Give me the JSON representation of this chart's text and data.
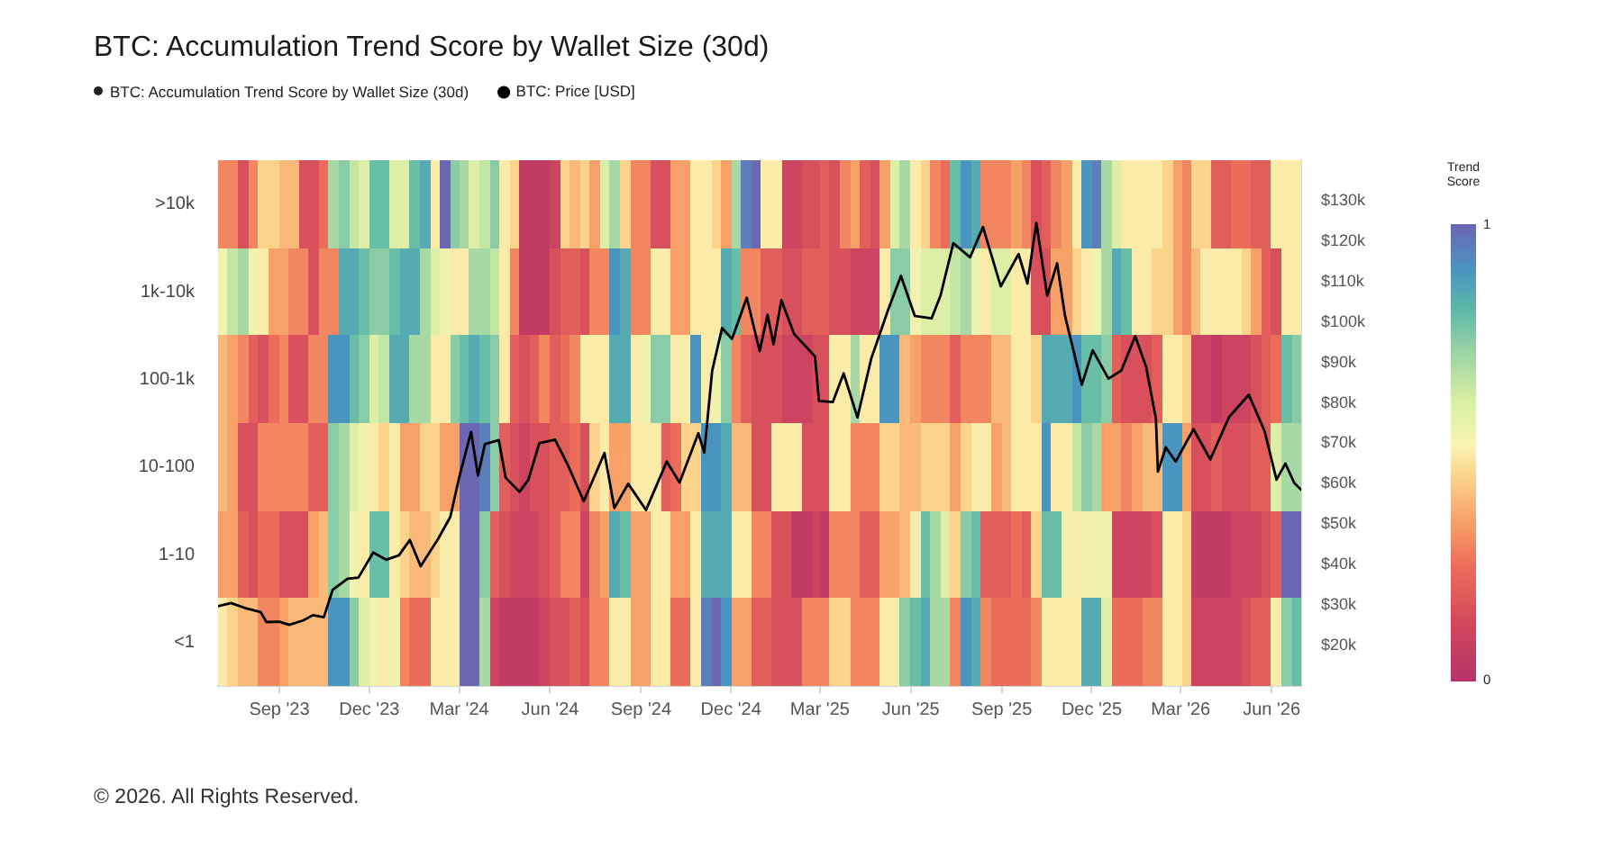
{
  "chart_data": {
    "type": "heatmap",
    "title": "BTC: Accumulation Trend Score by Wallet Size (30d)",
    "x": [
      "2023-07-06",
      "2023-07-16",
      "2023-07-26",
      "2023-08-06",
      "2023-08-16",
      "2023-08-26",
      "2023-09-06",
      "2023-09-16",
      "2023-09-26",
      "2023-10-06",
      "2023-10-16",
      "2023-10-26",
      "2023-11-06",
      "2023-11-16",
      "2023-11-26",
      "2023-12-06",
      "2023-12-16",
      "2023-12-26",
      "2024-01-06",
      "2024-01-16",
      "2024-01-26",
      "2024-02-06",
      "2024-02-16",
      "2024-02-26",
      "2024-03-06",
      "2024-03-16",
      "2024-03-26",
      "2024-04-06",
      "2024-04-16",
      "2024-04-26",
      "2024-05-06",
      "2024-05-16",
      "2024-05-26",
      "2024-06-06",
      "2024-06-16",
      "2024-06-26",
      "2024-07-06",
      "2024-07-16",
      "2024-07-26",
      "2024-08-06",
      "2024-08-16",
      "2024-08-26",
      "2024-09-06",
      "2024-09-16",
      "2024-09-26",
      "2024-10-06",
      "2024-10-16",
      "2024-10-26",
      "2024-11-06",
      "2024-11-16",
      "2024-11-26",
      "2024-12-06",
      "2024-12-16",
      "2024-12-26",
      "2025-01-06",
      "2025-01-16",
      "2025-01-26",
      "2025-02-06",
      "2025-02-16",
      "2025-02-26",
      "2025-03-06",
      "2025-03-16",
      "2025-03-26",
      "2025-04-06",
      "2025-04-16",
      "2025-04-26",
      "2025-05-06",
      "2025-05-16",
      "2025-05-26",
      "2025-06-06",
      "2025-06-16",
      "2025-06-26",
      "2025-07-06",
      "2025-07-16",
      "2025-07-26",
      "2025-08-06",
      "2025-08-16",
      "2025-08-26",
      "2025-09-06",
      "2025-09-16",
      "2025-09-26",
      "2025-10-06",
      "2025-10-16",
      "2025-10-26",
      "2025-11-06",
      "2025-11-16",
      "2025-11-26",
      "2025-12-06",
      "2025-12-16",
      "2025-12-26",
      "2026-01-06",
      "2026-01-16",
      "2026-01-26",
      "2026-02-06",
      "2026-02-16",
      "2026-02-26",
      "2026-03-06",
      "2026-03-16",
      "2026-03-26",
      "2026-04-06",
      "2026-04-16",
      "2026-04-26",
      "2026-05-06",
      "2026-05-16",
      "2026-05-26",
      "2026-06-06",
      "2026-06-16",
      "2026-06-26"
    ],
    "xlim": [
      "2023-07-01",
      "2026-07-01"
    ],
    "xticks": [
      {
        "value": "2023-09-01",
        "label": "Sep '23"
      },
      {
        "value": "2023-12-01",
        "label": "Dec '23"
      },
      {
        "value": "2024-03-01",
        "label": "Mar '24"
      },
      {
        "value": "2024-06-01",
        "label": "Jun '24"
      },
      {
        "value": "2024-09-01",
        "label": "Sep '24"
      },
      {
        "value": "2024-12-01",
        "label": "Dec '24"
      },
      {
        "value": "2025-03-01",
        "label": "Mar '25"
      },
      {
        "value": "2025-06-01",
        "label": "Jun '25"
      },
      {
        "value": "2025-09-01",
        "label": "Sep '25"
      },
      {
        "value": "2025-12-01",
        "label": "Dec '25"
      },
      {
        "value": "2026-03-01",
        "label": "Mar '26"
      },
      {
        "value": "2026-06-01",
        "label": "Jun '26"
      }
    ],
    "y_categories": [
      ">10k",
      "1k-10k",
      "100-1k",
      "10-100",
      "1-10",
      "<1"
    ],
    "cells": [
      [
        0.3,
        0.3,
        0.15,
        0.3,
        0.45,
        0.45,
        0.4,
        0.4,
        0.15,
        0.15,
        0.25,
        0.7,
        0.75,
        0.65,
        0.6,
        0.8,
        0.8,
        0.6,
        0.6,
        0.8,
        0.85,
        0.5,
        1,
        0.75,
        0.7,
        0.6,
        0.65,
        0.75,
        0.5,
        0.45,
        0.05,
        0.05,
        0.05,
        0.1,
        0.45,
        0.4,
        0.45,
        0.35,
        0.6,
        0.7,
        0.45,
        0.3,
        0.3,
        0.15,
        0.15,
        0.35,
        0.35,
        0.5,
        0.5,
        0.45,
        0.35,
        0.7,
        0.95,
        1,
        0.5,
        0.5,
        0.1,
        0.1,
        0.15,
        0.15,
        0.2,
        0.15,
        0.3,
        0.35,
        0.2,
        0.15,
        0.35,
        0.6,
        0.7,
        0.5,
        0.45,
        0.3,
        0.25,
        0.8,
        0.9,
        0.85,
        0.3,
        0.3,
        0.3,
        0.35,
        0.3,
        0.15,
        0.2,
        0.3,
        0.35,
        0.5,
        0.9,
        0.95,
        0.7,
        0.6,
        0.5,
        0.5,
        0.5,
        0.5,
        0.45,
        0.35,
        0.3,
        0.45,
        0.45,
        0.2,
        0.2,
        0.25,
        0.25,
        0.2,
        0.2,
        0.5,
        0.5,
        0.5
      ],
      [
        0.55,
        0.65,
        0.7,
        0.55,
        0.5,
        0.35,
        0.35,
        0.3,
        0.3,
        0.15,
        0.3,
        0.3,
        0.85,
        0.85,
        0.8,
        0.75,
        0.75,
        0.8,
        0.85,
        0.85,
        0.7,
        0.6,
        0.55,
        0.5,
        0.5,
        0.7,
        0.7,
        0.65,
        0.5,
        0.3,
        0.05,
        0.05,
        0.05,
        0.15,
        0.2,
        0.2,
        0.15,
        0.3,
        0.3,
        0.9,
        0.85,
        0.3,
        0.3,
        0.5,
        0.5,
        0.35,
        0.35,
        0.5,
        0.5,
        0.5,
        0.85,
        0.8,
        0.3,
        0.3,
        0.2,
        0.2,
        0.15,
        0.15,
        0.2,
        0.2,
        0.2,
        0.15,
        0.15,
        0.1,
        0.1,
        0.1,
        0.5,
        0.75,
        0.75,
        0.55,
        0.6,
        0.6,
        0.6,
        0.65,
        0.7,
        0.55,
        0.5,
        0.6,
        0.6,
        0.5,
        0.5,
        0.15,
        0.15,
        0.35,
        0.35,
        0.45,
        0.5,
        0.55,
        0.7,
        0.85,
        0.8,
        0.5,
        0.5,
        0.45,
        0.45,
        0.35,
        0.3,
        0.4,
        0.5,
        0.5,
        0.5,
        0.5,
        0.45,
        0.35,
        0.2,
        0.15,
        0.5,
        0.5
      ],
      [
        0.4,
        0.35,
        0.3,
        0.2,
        0.15,
        0.25,
        0.3,
        0.15,
        0.15,
        0.3,
        0.3,
        0.9,
        0.9,
        0.8,
        0.75,
        0.6,
        0.65,
        0.85,
        0.85,
        0.7,
        0.7,
        0.5,
        0.5,
        0.75,
        0.8,
        0.85,
        0.8,
        0.75,
        0.5,
        0.2,
        0.15,
        0.2,
        0.3,
        0.2,
        0.25,
        0.3,
        0.5,
        0.5,
        0.5,
        0.85,
        0.85,
        0.5,
        0.55,
        0.75,
        0.75,
        0.5,
        0.5,
        0.9,
        0.5,
        0.55,
        0.75,
        0.3,
        0.2,
        0.15,
        0.15,
        0.15,
        0.1,
        0.1,
        0.1,
        0.15,
        0.15,
        0.5,
        0.5,
        0.7,
        0.5,
        0.5,
        0.9,
        0.9,
        0.4,
        0.35,
        0.3,
        0.3,
        0.3,
        0.2,
        0.3,
        0.3,
        0.3,
        0.4,
        0.4,
        0.5,
        0.5,
        0.45,
        0.85,
        0.85,
        0.85,
        0.9,
        0.8,
        0.8,
        0.75,
        0.2,
        0.15,
        0.15,
        0.15,
        0.2,
        0.5,
        0.5,
        0.45,
        0.1,
        0.1,
        0.05,
        0.1,
        0.1,
        0.1,
        0.15,
        0.2,
        0.25,
        0.8,
        0.75
      ],
      [
        0.4,
        0.35,
        0.15,
        0.15,
        0.3,
        0.3,
        0.3,
        0.3,
        0.3,
        0.2,
        0.2,
        0.75,
        0.7,
        0.6,
        0.55,
        0.5,
        0.45,
        0.5,
        0.35,
        0.35,
        0.45,
        0.45,
        0.35,
        0.35,
        1,
        1,
        0.95,
        0.75,
        0.2,
        0.15,
        0.1,
        0.15,
        0.15,
        0.2,
        0.2,
        0.25,
        0.15,
        0.45,
        0.5,
        0.35,
        0.35,
        0.5,
        0.5,
        0.5,
        0.2,
        0.25,
        0.45,
        0.45,
        0.9,
        0.9,
        0.85,
        0.4,
        0.4,
        0.15,
        0.15,
        0.5,
        0.5,
        0.5,
        0.15,
        0.15,
        0.15,
        0.5,
        0.5,
        0.3,
        0.3,
        0.3,
        0.45,
        0.45,
        0.4,
        0.4,
        0.45,
        0.45,
        0.45,
        0.35,
        0.45,
        0.5,
        0.5,
        0.35,
        0.4,
        0.5,
        0.5,
        0.5,
        0.9,
        0.5,
        0.5,
        0.65,
        0.75,
        0.7,
        0.35,
        0.35,
        0.3,
        0.35,
        0.4,
        0.4,
        0.9,
        0.9,
        0.35,
        0.15,
        0.15,
        0.2,
        0.15,
        0.15,
        0.15,
        0.2,
        0.2,
        0.6,
        0.7,
        0.7
      ],
      [
        0.35,
        0.35,
        0.2,
        0.15,
        0.25,
        0.25,
        0.15,
        0.15,
        0.15,
        0.35,
        0.4,
        0.75,
        0.7,
        0.55,
        0.5,
        0.8,
        0.8,
        0.5,
        0.45,
        0.4,
        0.4,
        0.45,
        0.5,
        0.5,
        1,
        1,
        0.75,
        0.2,
        0.15,
        0.1,
        0.1,
        0.1,
        0.15,
        0.2,
        0.3,
        0.3,
        0.1,
        0.3,
        0.35,
        0.85,
        0.8,
        0.35,
        0.35,
        0.5,
        0.5,
        0.35,
        0.35,
        0.5,
        0.85,
        0.85,
        0.85,
        0.5,
        0.5,
        0.3,
        0.3,
        0.15,
        0.15,
        0.05,
        0.05,
        0.1,
        0.05,
        0.3,
        0.3,
        0.3,
        0.2,
        0.2,
        0.35,
        0.35,
        0.4,
        0.5,
        0.8,
        0.7,
        0.6,
        0.45,
        0.75,
        0.8,
        0.2,
        0.2,
        0.2,
        0.25,
        0.2,
        0.45,
        0.8,
        0.8,
        0.55,
        0.5,
        0.55,
        0.55,
        0.55,
        0.1,
        0.1,
        0.1,
        0.1,
        0.15,
        0.5,
        0.5,
        0.45,
        0.05,
        0.05,
        0.05,
        0.05,
        0.1,
        0.1,
        0.1,
        0.15,
        0.2,
        1,
        1
      ],
      [
        0.5,
        0.45,
        0.4,
        0.4,
        0.3,
        0.3,
        0.35,
        0.4,
        0.4,
        0.4,
        0.4,
        0.9,
        0.9,
        0.75,
        0.6,
        0.55,
        0.5,
        0.55,
        0.3,
        0.25,
        0.25,
        0.5,
        0.5,
        0.5,
        1,
        1,
        0.7,
        0.1,
        0.05,
        0.05,
        0.05,
        0.05,
        0.1,
        0.15,
        0.15,
        0.2,
        0.15,
        0.3,
        0.3,
        0.5,
        0.5,
        0.35,
        0.35,
        0.5,
        0.5,
        0.25,
        0.25,
        0.5,
        0.95,
        1,
        0.9,
        0.35,
        0.35,
        0.2,
        0.2,
        0.15,
        0.15,
        0.15,
        0.3,
        0.3,
        0.3,
        0.45,
        0.45,
        0.3,
        0.3,
        0.3,
        0.5,
        0.5,
        0.75,
        0.8,
        0.85,
        0.7,
        0.7,
        0.3,
        0.9,
        0.85,
        0.3,
        0.25,
        0.25,
        0.25,
        0.25,
        0.3,
        0.5,
        0.5,
        0.5,
        0.5,
        0.85,
        0.85,
        0.6,
        0.25,
        0.25,
        0.25,
        0.3,
        0.3,
        0.5,
        0.5,
        0.45,
        0.1,
        0.1,
        0.1,
        0.1,
        0.1,
        0.15,
        0.2,
        0.2,
        0.5,
        0.75,
        0.8
      ]
    ],
    "clabel": "Trend Score",
    "clim": [
      0,
      1
    ],
    "cticks": [
      0,
      1
    ],
    "series": [
      {
        "name": "BTC: Price [USD]",
        "type": "line",
        "axis": "y2",
        "color": "#000000",
        "x": [
          "2023-07-01",
          "2023-07-14",
          "2023-07-28",
          "2023-08-13",
          "2023-08-19",
          "2023-09-01",
          "2023-09-11",
          "2023-09-25",
          "2023-10-05",
          "2023-10-16",
          "2023-10-25",
          "2023-11-09",
          "2023-11-20",
          "2023-12-05",
          "2023-12-18",
          "2023-12-31",
          "2024-01-11",
          "2024-01-22",
          "2024-02-09",
          "2024-02-21",
          "2024-03-01",
          "2024-03-13",
          "2024-03-20",
          "2024-03-27",
          "2024-04-10",
          "2024-04-17",
          "2024-05-01",
          "2024-05-10",
          "2024-05-21",
          "2024-06-06",
          "2024-06-19",
          "2024-07-05",
          "2024-07-26",
          "2024-08-05",
          "2024-08-19",
          "2024-09-06",
          "2024-09-27",
          "2024-10-10",
          "2024-10-29",
          "2024-11-04",
          "2024-11-12",
          "2024-11-22",
          "2024-12-02",
          "2024-12-17",
          "2024-12-30",
          "2025-01-07",
          "2025-01-13",
          "2025-01-21",
          "2025-02-03",
          "2025-02-24",
          "2025-02-28",
          "2025-03-14",
          "2025-03-25",
          "2025-04-08",
          "2025-04-22",
          "2025-05-09",
          "2025-05-22",
          "2025-06-05",
          "2025-06-22",
          "2025-07-01",
          "2025-07-14",
          "2025-07-31",
          "2025-08-13",
          "2025-08-31",
          "2025-09-18",
          "2025-09-27",
          "2025-10-06",
          "2025-10-17",
          "2025-10-27",
          "2025-11-04",
          "2025-11-21",
          "2025-12-02",
          "2025-12-18",
          "2025-12-31",
          "2026-01-14",
          "2026-01-25",
          "2026-02-04",
          "2026-02-06",
          "2026-02-14",
          "2026-02-24",
          "2026-03-14",
          "2026-03-31",
          "2026-04-19",
          "2026-05-09",
          "2026-05-25",
          "2026-06-06",
          "2026-06-15",
          "2026-06-24",
          "2026-07-01"
        ],
        "values": [
          29700,
          30500,
          29300,
          28300,
          25800,
          25900,
          25100,
          26200,
          27500,
          27000,
          33800,
          36500,
          36800,
          43000,
          41200,
          42300,
          46100,
          39600,
          46500,
          51800,
          61600,
          72800,
          62000,
          69800,
          70800,
          61500,
          58000,
          61000,
          70000,
          70900,
          64600,
          55700,
          67600,
          54000,
          60000,
          53500,
          65500,
          60300,
          72500,
          67700,
          88000,
          98500,
          95800,
          106000,
          92800,
          101800,
          94500,
          105400,
          97000,
          91500,
          80500,
          80200,
          87300,
          76400,
          91000,
          103000,
          111400,
          101500,
          100900,
          106500,
          119500,
          116000,
          123500,
          108800,
          116800,
          109500,
          124500,
          106500,
          114500,
          101500,
          84500,
          93000,
          86000,
          88000,
          96500,
          89000,
          76000,
          63000,
          69000,
          65500,
          73500,
          66000,
          76500,
          82000,
          73000,
          61000,
          65000,
          60200,
          58500
        ]
      }
    ],
    "y2lim": [
      10000,
      140000
    ],
    "y2ticks": [
      {
        "value": 20000,
        "label": "$20k"
      },
      {
        "value": 30000,
        "label": "$30k"
      },
      {
        "value": 40000,
        "label": "$40k"
      },
      {
        "value": 50000,
        "label": "$50k"
      },
      {
        "value": 60000,
        "label": "$60k"
      },
      {
        "value": 70000,
        "label": "$70k"
      },
      {
        "value": 80000,
        "label": "$80k"
      },
      {
        "value": 90000,
        "label": "$90k"
      },
      {
        "value": 100000,
        "label": "$100k"
      },
      {
        "value": 110000,
        "label": "$110k"
      },
      {
        "value": 120000,
        "label": "$120k"
      },
      {
        "value": 130000,
        "label": "$130k"
      }
    ],
    "legend": "top left",
    "annotations": [
      "© 2026. All Rights Reserved."
    ]
  }
}
